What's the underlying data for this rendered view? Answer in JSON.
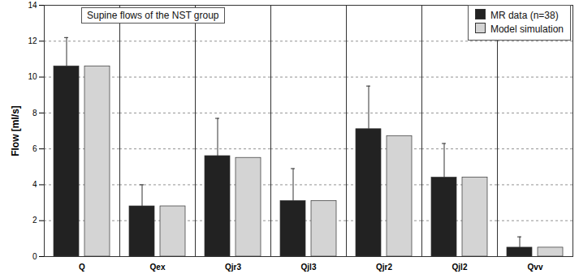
{
  "chart_data": {
    "type": "bar",
    "annotation": "Supine flows of the NST group",
    "y_label": "Flow [ml/s]",
    "categories": [
      "Q",
      "Qex",
      "Qjr3",
      "Qjl3",
      "Qjr2",
      "Qjl2",
      "Qvv"
    ],
    "series": [
      {
        "name": "MR data (n=38)",
        "color": "#222222",
        "values": [
          10.6,
          2.8,
          5.6,
          3.1,
          7.1,
          4.4,
          0.5
        ],
        "errors": [
          1.6,
          1.2,
          2.1,
          1.8,
          2.4,
          1.9,
          0.6
        ]
      },
      {
        "name": "Model simulation",
        "color": "#d4d4d4",
        "values": [
          10.6,
          2.8,
          5.5,
          3.1,
          6.7,
          4.4,
          0.5
        ]
      }
    ],
    "ylim": [
      0,
      14
    ],
    "yticks": [
      0,
      2,
      4,
      6,
      8,
      10,
      12,
      14
    ],
    "grid": true,
    "legend": "top-right"
  }
}
